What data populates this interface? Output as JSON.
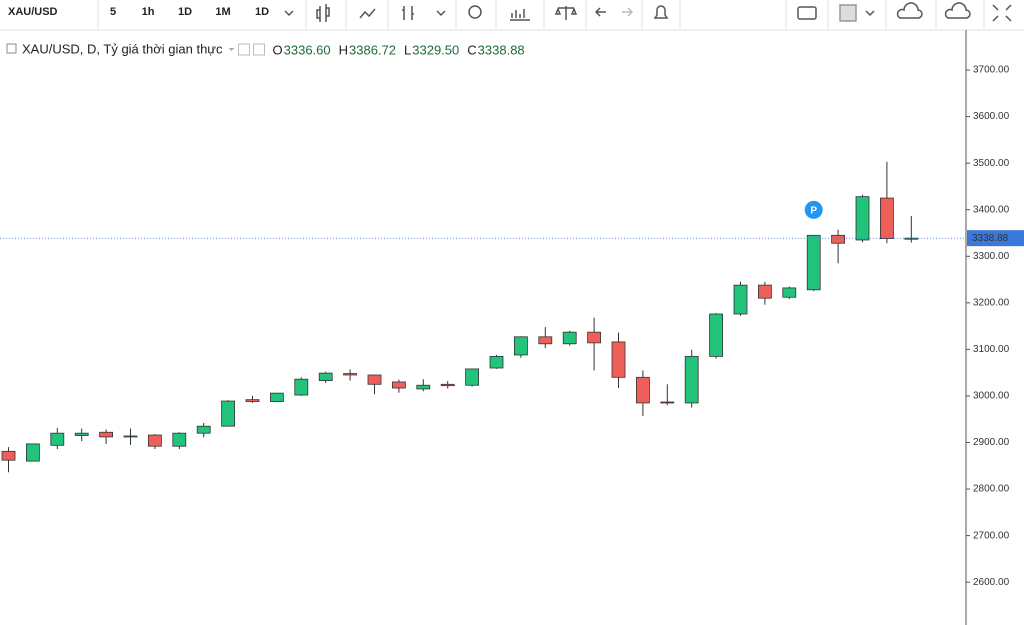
{
  "toolbar": {
    "symbol": "XAU/USD",
    "intervals": [
      "5",
      "1h",
      "1D",
      "1M",
      "1D"
    ]
  },
  "chart_data": {
    "type": "candlestick",
    "title": "XAU/USD, D, Tỷ giá thời gian thực",
    "ohlc_readout": [
      {
        "key": "O",
        "label": "3336.60"
      },
      {
        "key": "H",
        "label": "3386.72"
      },
      {
        "key": "L",
        "label": "3329.50"
      },
      {
        "key": "C",
        "label": "3338.88"
      }
    ],
    "categories": [
      null,
      null,
      null,
      null,
      null,
      null,
      null,
      null,
      null,
      null,
      null,
      null,
      null,
      null,
      null,
      null,
      null,
      null,
      null,
      null,
      null,
      null,
      null,
      null,
      null,
      null,
      null,
      null,
      null,
      null,
      null,
      null,
      null,
      null,
      null,
      null,
      null,
      null
    ],
    "open": [
      2881,
      2860,
      2894,
      2915,
      2922,
      2913,
      2916,
      2892,
      2920,
      2935,
      2992,
      2988,
      3002,
      3033,
      3048,
      3045,
      3030,
      3015,
      3025,
      3023,
      3060,
      3088,
      3127,
      3112,
      3137,
      3116,
      3040,
      2987,
      2985,
      3085,
      3176,
      3238,
      3212,
      3228,
      3345,
      3335,
      3425,
      3336.6
    ],
    "high": [
      2890,
      2897,
      2931,
      2930,
      2928,
      2930,
      2918,
      2922,
      2942,
      2991,
      3000,
      3006,
      3040,
      3052,
      3057,
      3045,
      3035,
      3036,
      3032,
      3058,
      3088,
      3128,
      3148,
      3140,
      3168,
      3136,
      3055,
      3025,
      3099,
      3178,
      3245,
      3245,
      3235,
      3346,
      3357,
      3432,
      3503,
      3386.72
    ],
    "low": [
      2836,
      2860,
      2886,
      2903,
      2897,
      2895,
      2886,
      2886,
      2911,
      2935,
      2985,
      2988,
      3000,
      3028,
      3033,
      3004,
      3007,
      3010,
      3016,
      3020,
      3058,
      3082,
      3103,
      3108,
      3055,
      3017,
      2957,
      2980,
      2975,
      3080,
      3172,
      3196,
      3208,
      3225,
      3285,
      3330,
      3328,
      3329.5
    ],
    "close": [
      2862,
      2897,
      2920,
      2920,
      2912,
      2914,
      2892,
      2920,
      2935,
      2989,
      2988,
      3006,
      3036,
      3049,
      3045,
      3025,
      3017,
      3023,
      3022,
      3058,
      3085,
      3127,
      3112,
      3137,
      3114,
      3040,
      2985,
      2985,
      3085,
      3176,
      3238,
      3210,
      3232,
      3345,
      3328,
      3428,
      3338,
      3338.88
    ],
    "up_color": "#22c37a",
    "down_color": "#ef5f5a",
    "last_price_color": "#3c78d8",
    "marker": {
      "label": "P",
      "index": 33,
      "color": "#2196f3"
    },
    "ylim": [
      2508,
      3786
    ],
    "yticks": [
      {
        "value": 2600,
        "label": "2600.00"
      },
      {
        "value": 2700,
        "label": "2700.00"
      },
      {
        "value": 2800,
        "label": "2800.00"
      },
      {
        "value": 2900,
        "label": "2900.00"
      },
      {
        "value": 3000,
        "label": "3000.00"
      },
      {
        "value": 3100,
        "label": "3100.00"
      },
      {
        "value": 3200,
        "label": "3200.00"
      },
      {
        "value": 3300,
        "label": "3300.00"
      },
      {
        "value": 3400,
        "label": "3400.00"
      },
      {
        "value": 3500,
        "label": "3500.00"
      },
      {
        "value": 3600,
        "label": "3600.00"
      },
      {
        "value": 3700,
        "label": "3700.00"
      }
    ]
  }
}
